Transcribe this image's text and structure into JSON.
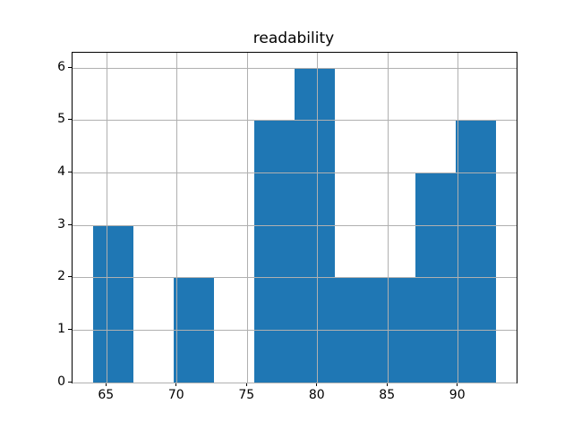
{
  "chart_data": {
    "type": "histogram",
    "title": "readability",
    "bin_edges": [
      64.0,
      66.87,
      69.74,
      72.62,
      75.49,
      78.36,
      81.23,
      84.1,
      86.98,
      89.85,
      92.72
    ],
    "counts": [
      3,
      0,
      2,
      0,
      5,
      6,
      2,
      2,
      4,
      5
    ],
    "xtick_values": [
      65,
      70,
      75,
      80,
      85,
      90
    ],
    "xtick_labels": [
      "65",
      "70",
      "75",
      "80",
      "85",
      "90"
    ],
    "ytick_values": [
      0,
      1,
      2,
      3,
      4,
      5,
      6
    ],
    "ytick_labels": [
      "0",
      "1",
      "2",
      "3",
      "4",
      "5",
      "6"
    ],
    "xlim": [
      62.56,
      94.16
    ],
    "ylim": [
      0,
      6.3
    ],
    "xlabel": "",
    "ylabel": "",
    "bar_color": "#1f77b4",
    "grid": true,
    "grid_color": "#b0b0b0",
    "axis_color": "#000000",
    "background_color": "#ffffff"
  }
}
